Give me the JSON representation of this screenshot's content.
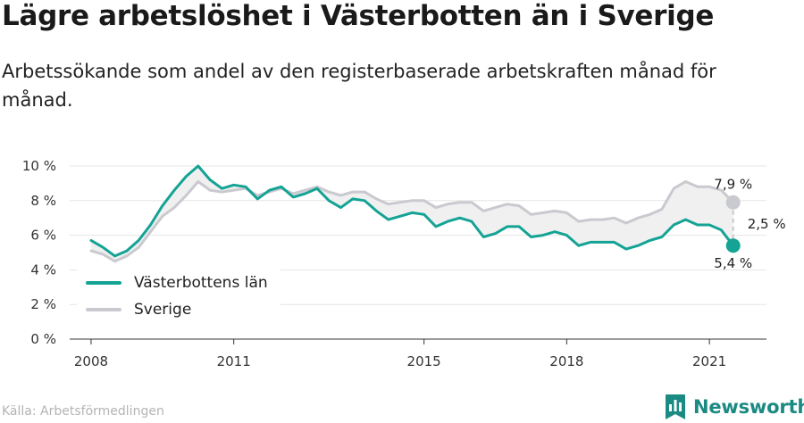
{
  "header": {
    "title": "Lägre arbetslöshet i Västerbotten än i Sverige",
    "subtitle": "Arbetssökande som andel av den registerbaserade arbetskraften månad för månad."
  },
  "footer": {
    "source": "Källa: Arbetsförmedlingen",
    "brand": "Newsworthy",
    "brand_icon": "newsworthy-logo-icon"
  },
  "colors": {
    "vasterbotten": "#14a395",
    "sverige": "#c9c9d0",
    "gap_fill": "#f0f0f0",
    "grid": "#e6e6e6",
    "brand": "#1b8a82"
  },
  "chart_data": {
    "type": "line",
    "x_unit": "date (year-month)",
    "x_tick_labels": [
      "2008",
      "2011",
      "2015",
      "2018",
      "2021"
    ],
    "y_tick_labels": [
      "0 %",
      "2 %",
      "4 %",
      "6 %",
      "8 %",
      "10 %"
    ],
    "ylim": [
      0,
      10
    ],
    "grid": true,
    "legend_position": "bottom-left",
    "series": [
      {
        "name": "Västerbottens län",
        "color": "#14a395",
        "points": [
          [
            "2008-01",
            5.7
          ],
          [
            "2008-04",
            5.3
          ],
          [
            "2008-07",
            4.8
          ],
          [
            "2008-10",
            5.1
          ],
          [
            "2009-01",
            5.7
          ],
          [
            "2009-04",
            6.6
          ],
          [
            "2009-07",
            7.7
          ],
          [
            "2009-10",
            8.6
          ],
          [
            "2010-01",
            9.4
          ],
          [
            "2010-04",
            10.0
          ],
          [
            "2010-07",
            9.2
          ],
          [
            "2010-10",
            8.7
          ],
          [
            "2011-01",
            8.9
          ],
          [
            "2011-04",
            8.8
          ],
          [
            "2011-07",
            8.1
          ],
          [
            "2011-10",
            8.6
          ],
          [
            "2012-01",
            8.8
          ],
          [
            "2012-04",
            8.2
          ],
          [
            "2012-07",
            8.4
          ],
          [
            "2012-10",
            8.7
          ],
          [
            "2013-01",
            8.0
          ],
          [
            "2013-04",
            7.6
          ],
          [
            "2013-07",
            8.1
          ],
          [
            "2013-10",
            8.0
          ],
          [
            "2014-01",
            7.4
          ],
          [
            "2014-04",
            6.9
          ],
          [
            "2014-07",
            7.1
          ],
          [
            "2014-10",
            7.3
          ],
          [
            "2015-01",
            7.2
          ],
          [
            "2015-04",
            6.5
          ],
          [
            "2015-07",
            6.8
          ],
          [
            "2015-10",
            7.0
          ],
          [
            "2016-01",
            6.8
          ],
          [
            "2016-04",
            5.9
          ],
          [
            "2016-07",
            6.1
          ],
          [
            "2016-10",
            6.5
          ],
          [
            "2017-01",
            6.5
          ],
          [
            "2017-04",
            5.9
          ],
          [
            "2017-07",
            6.0
          ],
          [
            "2017-10",
            6.2
          ],
          [
            "2018-01",
            6.0
          ],
          [
            "2018-04",
            5.4
          ],
          [
            "2018-07",
            5.6
          ],
          [
            "2018-10",
            5.6
          ],
          [
            "2019-01",
            5.6
          ],
          [
            "2019-04",
            5.2
          ],
          [
            "2019-07",
            5.4
          ],
          [
            "2019-10",
            5.7
          ],
          [
            "2020-01",
            5.9
          ],
          [
            "2020-04",
            6.6
          ],
          [
            "2020-07",
            6.9
          ],
          [
            "2020-10",
            6.6
          ],
          [
            "2021-01",
            6.6
          ],
          [
            "2021-04",
            6.3
          ],
          [
            "2021-07",
            5.4
          ]
        ],
        "end_label": "5,4 %"
      },
      {
        "name": "Sverige",
        "color": "#c9c9d0",
        "points": [
          [
            "2008-01",
            5.1
          ],
          [
            "2008-04",
            4.9
          ],
          [
            "2008-07",
            4.5
          ],
          [
            "2008-10",
            4.8
          ],
          [
            "2009-01",
            5.3
          ],
          [
            "2009-04",
            6.2
          ],
          [
            "2009-07",
            7.1
          ],
          [
            "2009-10",
            7.6
          ],
          [
            "2010-01",
            8.3
          ],
          [
            "2010-04",
            9.1
          ],
          [
            "2010-07",
            8.6
          ],
          [
            "2010-10",
            8.5
          ],
          [
            "2011-01",
            8.6
          ],
          [
            "2011-04",
            8.7
          ],
          [
            "2011-07",
            8.3
          ],
          [
            "2011-10",
            8.5
          ],
          [
            "2012-01",
            8.7
          ],
          [
            "2012-04",
            8.4
          ],
          [
            "2012-07",
            8.6
          ],
          [
            "2012-10",
            8.8
          ],
          [
            "2013-01",
            8.5
          ],
          [
            "2013-04",
            8.3
          ],
          [
            "2013-07",
            8.5
          ],
          [
            "2013-10",
            8.5
          ],
          [
            "2014-01",
            8.1
          ],
          [
            "2014-04",
            7.8
          ],
          [
            "2014-07",
            7.9
          ],
          [
            "2014-10",
            8.0
          ],
          [
            "2015-01",
            8.0
          ],
          [
            "2015-04",
            7.6
          ],
          [
            "2015-07",
            7.8
          ],
          [
            "2015-10",
            7.9
          ],
          [
            "2016-01",
            7.9
          ],
          [
            "2016-04",
            7.4
          ],
          [
            "2016-07",
            7.6
          ],
          [
            "2016-10",
            7.8
          ],
          [
            "2017-01",
            7.7
          ],
          [
            "2017-04",
            7.2
          ],
          [
            "2017-07",
            7.3
          ],
          [
            "2017-10",
            7.4
          ],
          [
            "2018-01",
            7.3
          ],
          [
            "2018-04",
            6.8
          ],
          [
            "2018-07",
            6.9
          ],
          [
            "2018-10",
            6.9
          ],
          [
            "2019-01",
            7.0
          ],
          [
            "2019-04",
            6.7
          ],
          [
            "2019-07",
            7.0
          ],
          [
            "2019-10",
            7.2
          ],
          [
            "2020-01",
            7.5
          ],
          [
            "2020-04",
            8.7
          ],
          [
            "2020-07",
            9.1
          ],
          [
            "2020-10",
            8.8
          ],
          [
            "2021-01",
            8.8
          ],
          [
            "2021-04",
            8.6
          ],
          [
            "2021-07",
            7.9
          ]
        ],
        "end_label": "7,9 %"
      }
    ],
    "annotations": [
      {
        "type": "gap",
        "date": "2021-07",
        "from": 5.4,
        "to": 7.9,
        "label": "2,5 %"
      }
    ]
  }
}
